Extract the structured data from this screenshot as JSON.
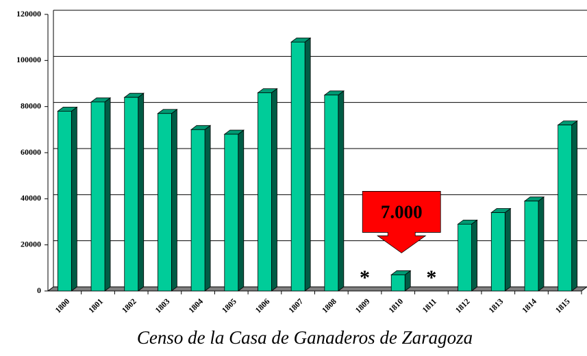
{
  "chart_data": {
    "type": "bar3d",
    "title": "Censo de la Casa de Ganaderos de Zaragoza",
    "categories": [
      "1800",
      "1801",
      "1802",
      "1803",
      "1804",
      "1805",
      "1806",
      "1807",
      "1808",
      "1809",
      "1810",
      "1811",
      "1812",
      "1813",
      "1814",
      "1815"
    ],
    "values": [
      78000,
      82000,
      84000,
      77000,
      70000,
      68000,
      86000,
      108000,
      85000,
      null,
      7000,
      null,
      29000,
      34000,
      39000,
      72000
    ],
    "color": "#00cc99",
    "ylim": [
      0,
      120000
    ],
    "yticks": [
      0,
      20000,
      40000,
      60000,
      80000,
      100000,
      120000
    ],
    "grid": true,
    "annotations": [
      {
        "text": "7.000",
        "category": "1810",
        "color": "#ff0000"
      },
      {
        "text": "*",
        "category": "1809"
      },
      {
        "text": "*",
        "category": "1811"
      }
    ]
  }
}
